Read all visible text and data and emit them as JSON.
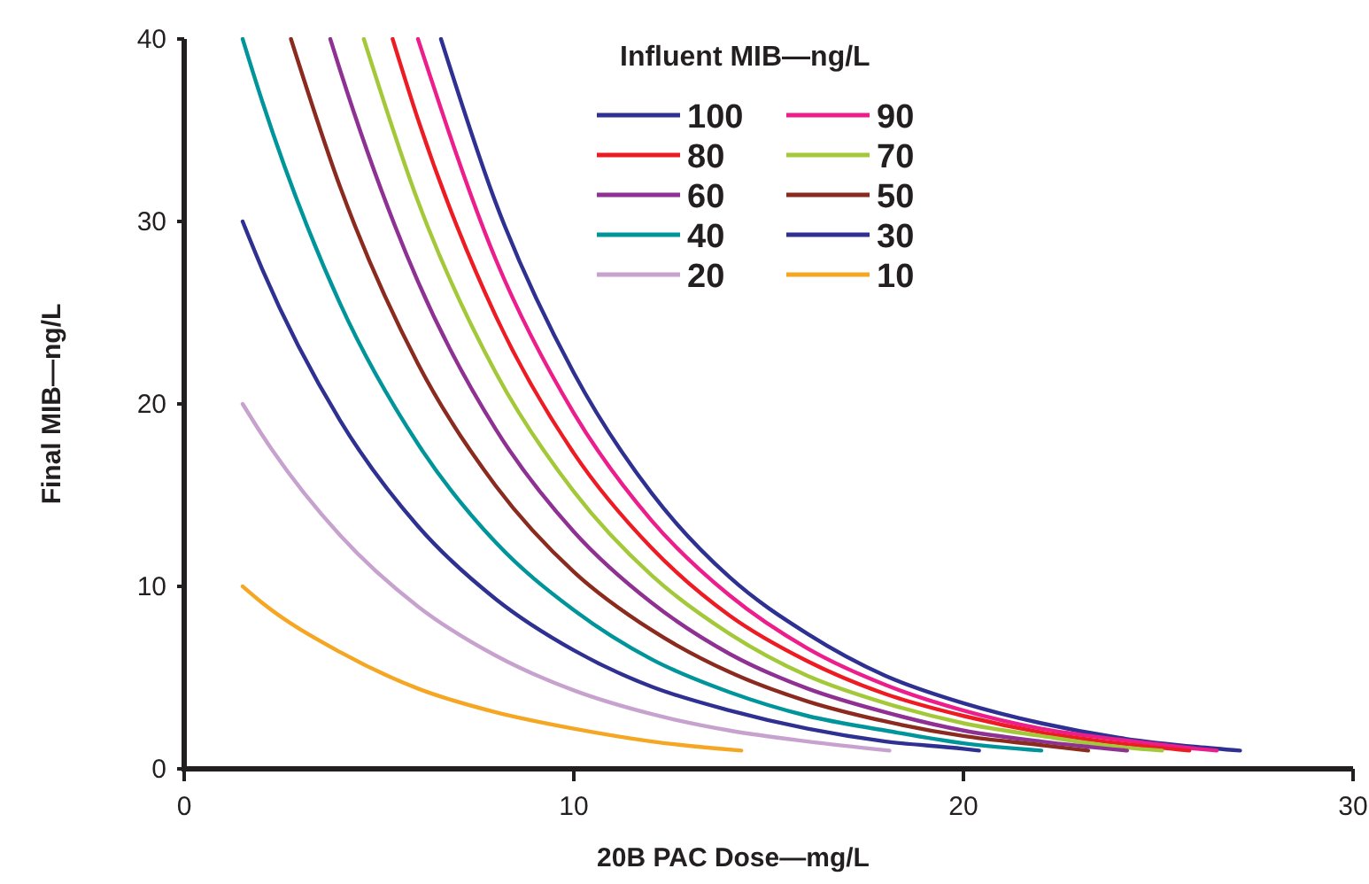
{
  "chart_data": {
    "type": "line",
    "xlabel": "20B PAC Dose—mg/L",
    "ylabel": "Final MIB—ng/L",
    "legend_title": "Influent MIB—ng/L",
    "legend": "top right",
    "grid": false,
    "marker": "none",
    "line_style": "solid",
    "xlim": [
      0,
      30
    ],
    "xticks": [
      0,
      10,
      20,
      30
    ],
    "ylim": [
      0,
      40
    ],
    "yticks": [
      0,
      10,
      20,
      30,
      40
    ],
    "series": [
      {
        "name": "100",
        "color": "#2e3192",
        "x": [
          6.59,
          8,
          10,
          12,
          14,
          16,
          18,
          20,
          22,
          24,
          26,
          27.1
        ],
        "values": [
          40,
          31.0,
          21.7,
          15.1,
          10.5,
          7.4,
          5.1,
          3.6,
          2.5,
          1.7,
          1.2,
          1.0
        ]
      },
      {
        "name": "90",
        "color": "#ec1e8c",
        "x": [
          6,
          8,
          10,
          12,
          14,
          16,
          18,
          20,
          22,
          24,
          26,
          26.5
        ],
        "values": [
          40,
          27.9,
          19.5,
          13.6,
          9.5,
          6.6,
          4.6,
          3.2,
          2.2,
          1.6,
          1.1,
          1.0
        ]
      },
      {
        "name": "80",
        "color": "#ed1c24",
        "x": [
          5.35,
          6,
          8,
          10,
          12,
          14,
          16,
          18,
          20,
          22,
          24,
          25.8
        ],
        "values": [
          40,
          35.6,
          24.8,
          17.3,
          12.1,
          8.4,
          5.9,
          4.1,
          2.9,
          2.0,
          1.4,
          1.0
        ]
      },
      {
        "name": "70",
        "color": "#a3c93a",
        "x": [
          4.61,
          6,
          8,
          10,
          12,
          14,
          16,
          18,
          20,
          22,
          24,
          25.1
        ],
        "values": [
          40,
          31.1,
          21.7,
          15.2,
          10.6,
          7.4,
          5.1,
          3.6,
          2.5,
          1.8,
          1.2,
          1.0
        ]
      },
      {
        "name": "60",
        "color": "#8e3192",
        "x": [
          3.75,
          4,
          6,
          8,
          10,
          12,
          14,
          16,
          18,
          20,
          22,
          24.2
        ],
        "values": [
          40,
          38.3,
          26.7,
          18.6,
          13.0,
          9.1,
          6.3,
          4.4,
          3.1,
          2.1,
          1.5,
          1.0
        ]
      },
      {
        "name": "50",
        "color": "#8b2a1f",
        "x": [
          2.74,
          4,
          6,
          8,
          10,
          12,
          14,
          16,
          18,
          20,
          22,
          23.2
        ],
        "values": [
          40,
          31.9,
          22.2,
          15.5,
          10.8,
          7.6,
          5.3,
          3.7,
          2.6,
          1.8,
          1.3,
          1.0
        ]
      },
      {
        "name": "40",
        "color": "#00959a",
        "x": [
          1.5,
          2,
          4,
          6,
          8,
          10,
          12,
          14,
          16,
          18,
          20,
          22
        ],
        "values": [
          40,
          36.6,
          25.5,
          17.8,
          12.4,
          8.7,
          6.0,
          4.2,
          2.9,
          2.1,
          1.4,
          1.0
        ]
      },
      {
        "name": "30",
        "color": "#2e3192",
        "x": [
          1.5,
          2,
          4,
          6,
          8,
          10,
          12,
          14,
          16,
          18,
          20,
          20.4
        ],
        "values": [
          30,
          27.4,
          19.1,
          13.3,
          9.3,
          6.5,
          4.5,
          3.2,
          2.2,
          1.5,
          1.1,
          1.0
        ]
      },
      {
        "name": "20",
        "color": "#c8a2cf",
        "x": [
          1.5,
          2,
          4,
          6,
          8,
          10,
          12,
          14,
          16,
          18.1
        ],
        "values": [
          20,
          18.3,
          12.8,
          8.9,
          6.2,
          4.3,
          3.0,
          2.1,
          1.5,
          1.0
        ]
      },
      {
        "name": "10",
        "color": "#f5a623",
        "x": [
          1.5,
          2,
          4,
          6,
          8,
          10,
          12,
          14.3
        ],
        "values": [
          10,
          9.1,
          6.4,
          4.4,
          3.1,
          2.2,
          1.5,
          1.0
        ]
      }
    ]
  }
}
